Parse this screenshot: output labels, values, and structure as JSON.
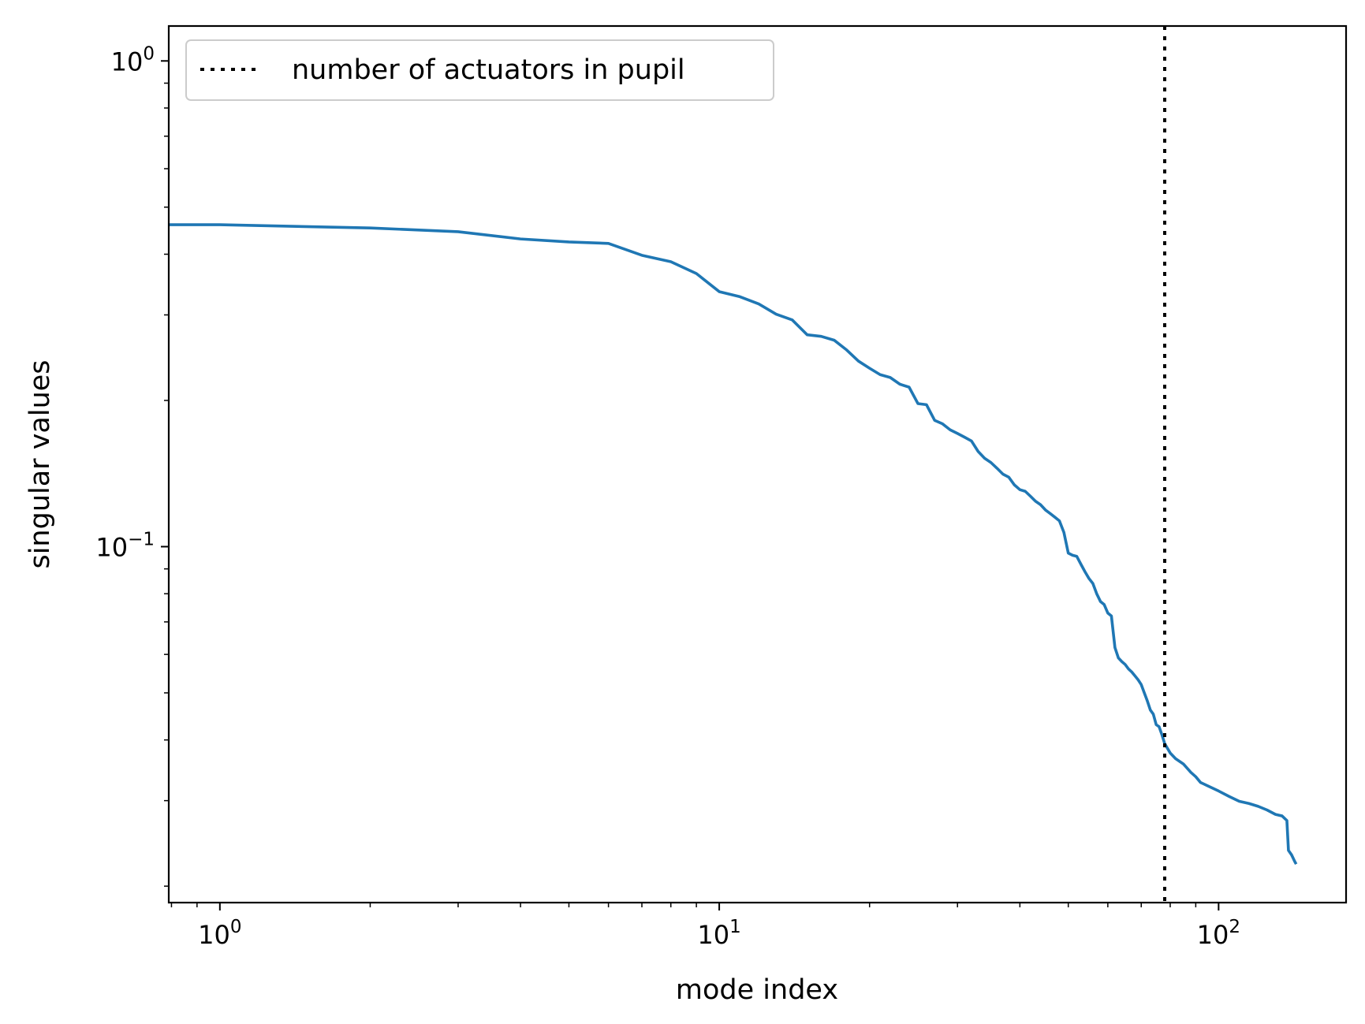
{
  "chart_data": {
    "type": "line",
    "xlabel": "mode index",
    "ylabel": "singular values",
    "xscale": "log",
    "yscale": "log",
    "xlim": [
      0.79,
      180
    ],
    "ylim": [
      0.0185,
      1.18
    ],
    "x_ticks": [
      {
        "value": 1,
        "base": "10",
        "exp": "0"
      },
      {
        "value": 10,
        "base": "10",
        "exp": "1"
      },
      {
        "value": 100,
        "base": "10",
        "exp": "2"
      }
    ],
    "y_ticks": [
      {
        "value": 0.1,
        "base": "10",
        "exp": "−1"
      },
      {
        "value": 1,
        "base": "10",
        "exp": "0"
      }
    ],
    "grid": false,
    "legend": {
      "position": "top-left",
      "entries": [
        {
          "label": "number of actuators in pupil",
          "style": "dotted",
          "color": "#000000"
        }
      ]
    },
    "vline": {
      "x": 78,
      "color": "#000000",
      "style": "dotted"
    },
    "series": [
      {
        "color": "#1f77b4",
        "points": [
          [
            0.79,
            0.46
          ],
          [
            1,
            0.46
          ],
          [
            2,
            0.453
          ],
          [
            3,
            0.445
          ],
          [
            4,
            0.43
          ],
          [
            5,
            0.424
          ],
          [
            6,
            0.421
          ],
          [
            7,
            0.398
          ],
          [
            8,
            0.386
          ],
          [
            9,
            0.365
          ],
          [
            10,
            0.335
          ],
          [
            11,
            0.327
          ],
          [
            12,
            0.316
          ],
          [
            13,
            0.301
          ],
          [
            14,
            0.293
          ],
          [
            15,
            0.273
          ],
          [
            16,
            0.271
          ],
          [
            17,
            0.266
          ],
          [
            18,
            0.254
          ],
          [
            19,
            0.241
          ],
          [
            20,
            0.233
          ],
          [
            21,
            0.226
          ],
          [
            22,
            0.223
          ],
          [
            23,
            0.216
          ],
          [
            24,
            0.213
          ],
          [
            25,
            0.197
          ],
          [
            26,
            0.196
          ],
          [
            27,
            0.182
          ],
          [
            28,
            0.179
          ],
          [
            29,
            0.174
          ],
          [
            30,
            0.171
          ],
          [
            31,
            0.168
          ],
          [
            32,
            0.165
          ],
          [
            33,
            0.157
          ],
          [
            34,
            0.152
          ],
          [
            35,
            0.149
          ],
          [
            36,
            0.145
          ],
          [
            37,
            0.141
          ],
          [
            38,
            0.139
          ],
          [
            39,
            0.134
          ],
          [
            40,
            0.131
          ],
          [
            41,
            0.13
          ],
          [
            42,
            0.127
          ],
          [
            43,
            0.124
          ],
          [
            44,
            0.122
          ],
          [
            45,
            0.119
          ],
          [
            46,
            0.117
          ],
          [
            47,
            0.115
          ],
          [
            48,
            0.113
          ],
          [
            49,
            0.107
          ],
          [
            50,
            0.097
          ],
          [
            51,
            0.096
          ],
          [
            52,
            0.0955
          ],
          [
            53,
            0.092
          ],
          [
            54,
            0.0888
          ],
          [
            55,
            0.086
          ],
          [
            56,
            0.084
          ],
          [
            57,
            0.08
          ],
          [
            58,
            0.0771
          ],
          [
            59,
            0.076
          ],
          [
            60,
            0.073
          ],
          [
            61,
            0.072
          ],
          [
            62,
            0.062
          ],
          [
            63,
            0.059
          ],
          [
            64,
            0.058
          ],
          [
            65,
            0.0572
          ],
          [
            66,
            0.056
          ],
          [
            67,
            0.0552
          ],
          [
            68,
            0.0542
          ],
          [
            69,
            0.0532
          ],
          [
            70,
            0.052
          ],
          [
            71,
            0.05
          ],
          [
            72,
            0.0481
          ],
          [
            73,
            0.0461
          ],
          [
            74,
            0.0452
          ],
          [
            75,
            0.043
          ],
          [
            76,
            0.0426
          ],
          [
            77,
            0.041
          ],
          [
            78,
            0.0393
          ],
          [
            80,
            0.0376
          ],
          [
            82,
            0.0366
          ],
          [
            85,
            0.0357
          ],
          [
            88,
            0.0343
          ],
          [
            90,
            0.0336
          ],
          [
            92,
            0.0327
          ],
          [
            95,
            0.0322
          ],
          [
            100,
            0.0314
          ],
          [
            105,
            0.0306
          ],
          [
            110,
            0.0299
          ],
          [
            115,
            0.0296
          ],
          [
            120,
            0.0292
          ],
          [
            125,
            0.0287
          ],
          [
            130,
            0.0281
          ],
          [
            134,
            0.0279
          ],
          [
            137,
            0.0273
          ],
          [
            138,
            0.0237
          ],
          [
            140,
            0.0232
          ],
          [
            142,
            0.0225
          ],
          [
            143,
            0.0222
          ]
        ]
      }
    ]
  }
}
